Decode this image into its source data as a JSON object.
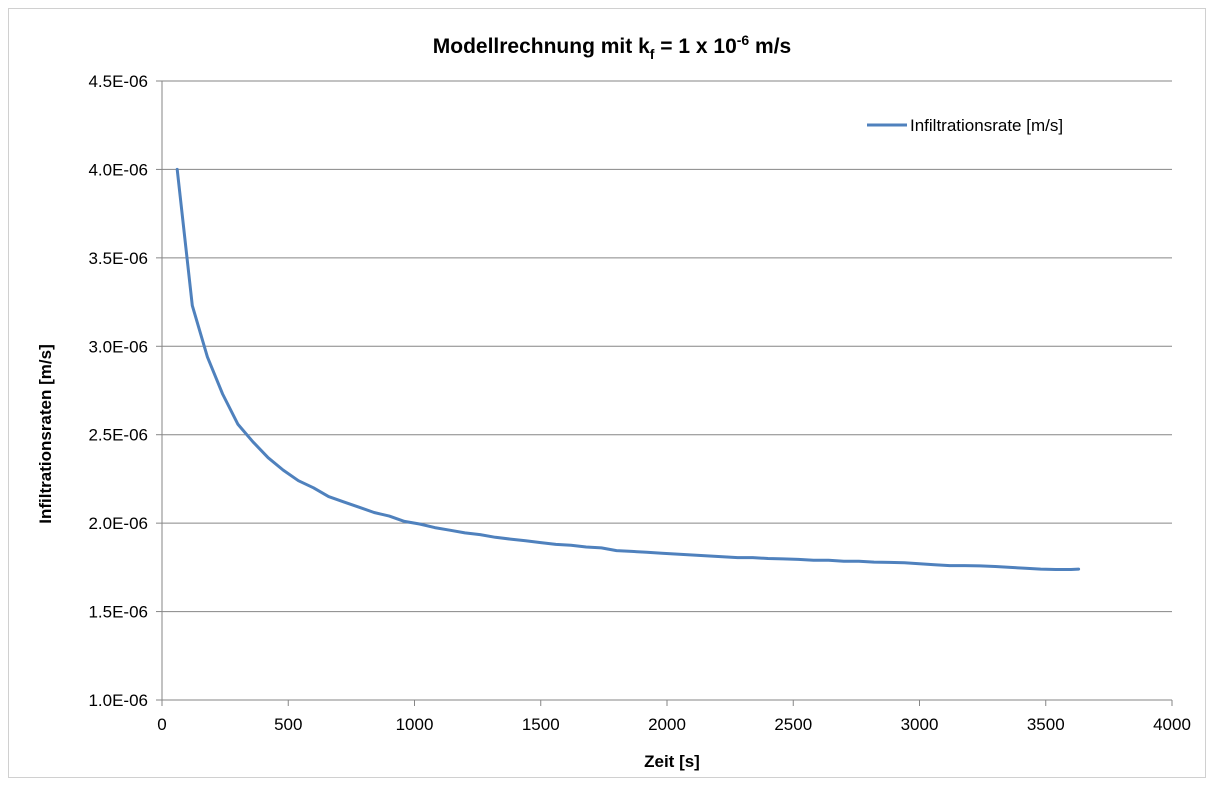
{
  "chart_data": {
    "type": "line",
    "title": {
      "main": "Modellrechnung mit k",
      "sub": "f",
      "mid": " = 1 x 10",
      "sup": "-6",
      "end": " m/s"
    },
    "xlabel": "Zeit [s]",
    "ylabel": "Infiltrationsraten [m/s]",
    "xlim": [
      0,
      4000
    ],
    "ylim": [
      1e-06,
      4.5e-06
    ],
    "xticks": [
      0,
      500,
      1000,
      1500,
      2000,
      2500,
      3000,
      3500,
      4000
    ],
    "xtick_labels": [
      "0",
      "500",
      "1000",
      "1500",
      "2000",
      "2500",
      "3000",
      "3500",
      "4000"
    ],
    "yticks": [
      1e-06,
      1.5e-06,
      2e-06,
      2.5e-06,
      3e-06,
      3.5e-06,
      4e-06,
      4.5e-06
    ],
    "ytick_labels": [
      "1.0E-06",
      "1.5E-06",
      "2.0E-06",
      "2.5E-06",
      "3.0E-06",
      "3.5E-06",
      "4.0E-06",
      "4.5E-06"
    ],
    "grid": "horizontal",
    "legend_position": "top-right",
    "series": [
      {
        "name": "Infiltrationsrate [m/s]",
        "color": "#4f81bd",
        "x": [
          60,
          120,
          180,
          240,
          300,
          360,
          420,
          480,
          540,
          600,
          660,
          720,
          780,
          840,
          900,
          960,
          1020,
          1080,
          1140,
          1200,
          1260,
          1320,
          1380,
          1440,
          1500,
          1560,
          1620,
          1680,
          1740,
          1800,
          1860,
          1920,
          1980,
          2040,
          2100,
          2160,
          2220,
          2280,
          2340,
          2400,
          2460,
          2520,
          2580,
          2640,
          2700,
          2760,
          2820,
          2880,
          2940,
          3000,
          3060,
          3120,
          3180,
          3240,
          3300,
          3360,
          3420,
          3480,
          3540,
          3600,
          3630
        ],
        "y": [
          4e-06,
          3.23e-06,
          2.94e-06,
          2.73e-06,
          2.56e-06,
          2.46e-06,
          2.37e-06,
          2.3e-06,
          2.24e-06,
          2.2e-06,
          2.15e-06,
          2.12e-06,
          2.09e-06,
          2.06e-06,
          2.04e-06,
          2.01e-06,
          1.995e-06,
          1.975e-06,
          1.96e-06,
          1.945e-06,
          1.935e-06,
          1.92e-06,
          1.91e-06,
          1.9e-06,
          1.89e-06,
          1.88e-06,
          1.875e-06,
          1.865e-06,
          1.86e-06,
          1.845e-06,
          1.84e-06,
          1.835e-06,
          1.83e-06,
          1.825e-06,
          1.82e-06,
          1.815e-06,
          1.81e-06,
          1.805e-06,
          1.805e-06,
          1.8e-06,
          1.798e-06,
          1.795e-06,
          1.79e-06,
          1.79e-06,
          1.785e-06,
          1.785e-06,
          1.78e-06,
          1.778e-06,
          1.776e-06,
          1.77e-06,
          1.765e-06,
          1.76e-06,
          1.76e-06,
          1.758e-06,
          1.755e-06,
          1.75e-06,
          1.745e-06,
          1.74e-06,
          1.738e-06,
          1.738e-06,
          1.74e-06
        ]
      }
    ]
  }
}
